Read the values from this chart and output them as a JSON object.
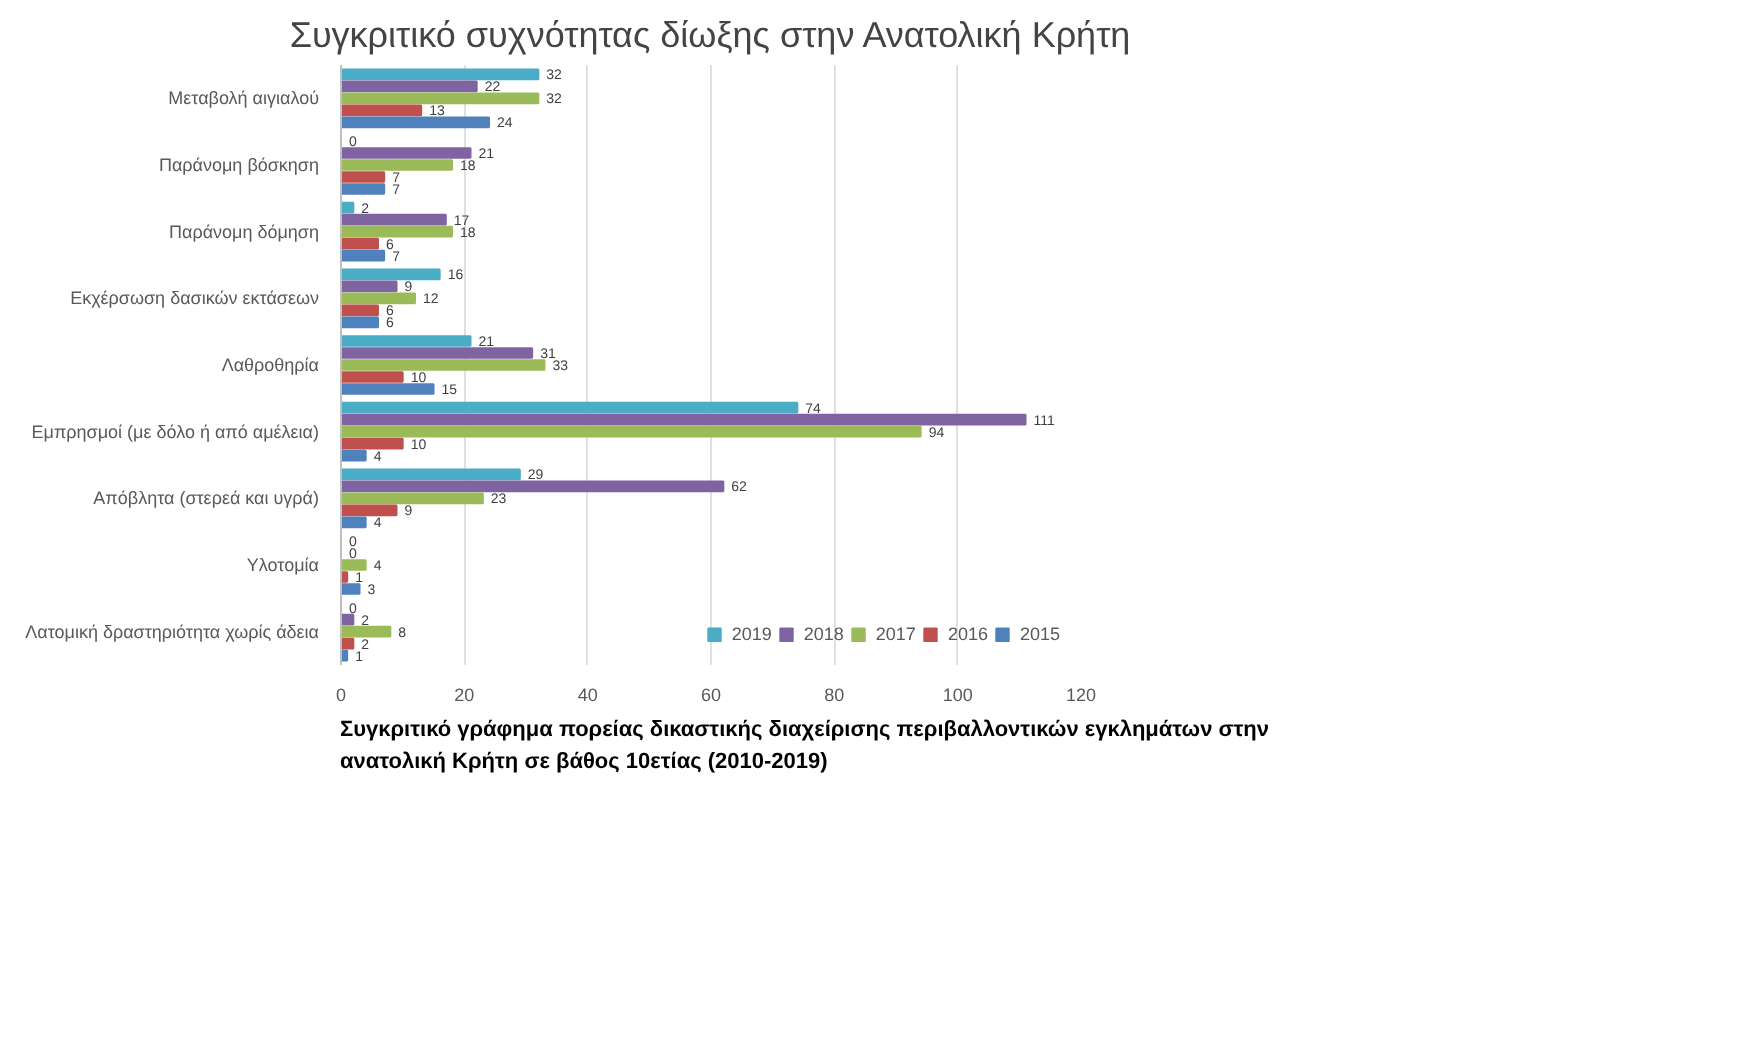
{
  "chart_data": {
    "type": "bar",
    "orientation": "horizontal",
    "title": "Συγκριτικό συχνότητας δίωξης στην Ανατολική Κρήτη",
    "categories": [
      "Μεταβολή αιγιαλού",
      "Παράνομη βόσκηση",
      "Παράνομη δόμηση",
      "Εκχέρσωση δασικών εκτάσεων",
      "Λαθροθηρία",
      "Εμπρησμοί (με δόλο ή από αμέλεια)",
      "Απόβλητα (στερεά και υγρά)",
      "Υλοτομία",
      "Λατομική δραστηριότητα χωρίς άδεια"
    ],
    "series": [
      {
        "name": "2019",
        "color": "#4bacc6",
        "values": [
          32,
          0,
          2,
          16,
          21,
          74,
          29,
          0,
          0
        ]
      },
      {
        "name": "2018",
        "color": "#8064a2",
        "values": [
          22,
          21,
          17,
          9,
          31,
          111,
          62,
          0,
          2
        ]
      },
      {
        "name": "2017",
        "color": "#9bbb59",
        "values": [
          32,
          18,
          18,
          12,
          33,
          94,
          23,
          4,
          8
        ]
      },
      {
        "name": "2016",
        "color": "#c0504d",
        "values": [
          13,
          7,
          6,
          6,
          10,
          10,
          9,
          1,
          2
        ]
      },
      {
        "name": "2015",
        "color": "#4f81bd",
        "values": [
          24,
          7,
          7,
          6,
          15,
          4,
          4,
          3,
          1
        ]
      }
    ],
    "xlim": [
      0,
      120
    ],
    "xticks": [
      0,
      20,
      40,
      60,
      80,
      100,
      120
    ],
    "grid": "x",
    "legend": "bottom",
    "data_labels": true,
    "annotations": [
      "Συγκριτικό γράφημα πορείας δικαστικής διαχείρισης περιβαλλοντικών εγκλημάτων στην ανατολική Κρήτη σε βάθος 10ετίας (2010-2019)"
    ]
  }
}
